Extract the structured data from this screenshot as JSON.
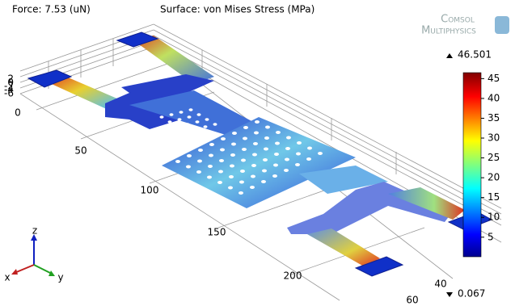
{
  "title": {
    "force": "Force: 7.53 (uN)",
    "surface": "Surface: von Mises Stress (MPa)"
  },
  "logo": [
    "Comsol",
    "Multiphysics"
  ],
  "colorbar": {
    "max": 46.501,
    "min": 0.067,
    "ticks": [
      5,
      10,
      15,
      20,
      25,
      30,
      35,
      40,
      45
    ]
  },
  "axes": {
    "x_ticks": [
      0,
      50,
      100,
      150,
      200
    ],
    "y_ticks": [
      40,
      60
    ],
    "z_ticks": [
      2,
      0,
      -2,
      -4,
      -6
    ]
  },
  "triad": {
    "x": "x",
    "y": "y",
    "z": "z"
  }
}
